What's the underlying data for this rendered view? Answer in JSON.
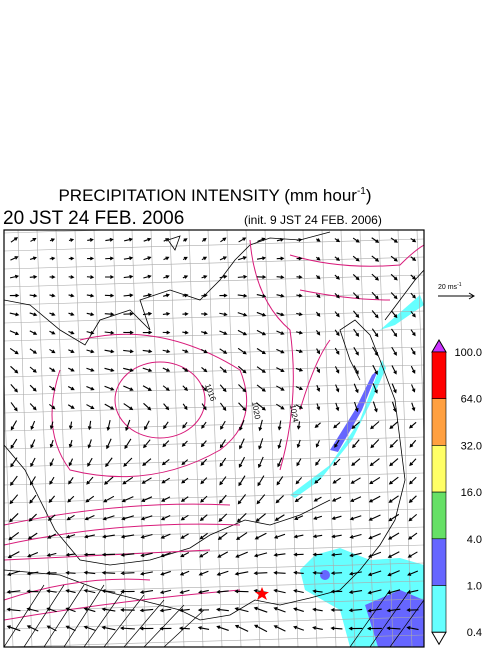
{
  "header": {
    "title_main": "PRECIPITATION INTENSITY (mm hour",
    "title_sup": "-1",
    "title_end": ")",
    "valid_time": "20 JST 24 FEB. 2006",
    "init_time": "(init. 9 JST 24 FEB. 2006)"
  },
  "wind_reference": {
    "label": "20 ms",
    "sup": "-1"
  },
  "isobar_labels": [
    "1016",
    "1020",
    "1024"
  ],
  "colorbar": {
    "labels": [
      "100.0",
      "64.0",
      "32.0",
      "16.0",
      "4.0",
      "1.0",
      "0.4"
    ],
    "top_color": "#cc33ff",
    "colors": [
      "#ff0000",
      "#ffa040",
      "#ffff66",
      "#66e066",
      "#6666ff",
      "#66ffff"
    ],
    "bottom_color": "#ffffff"
  }
}
